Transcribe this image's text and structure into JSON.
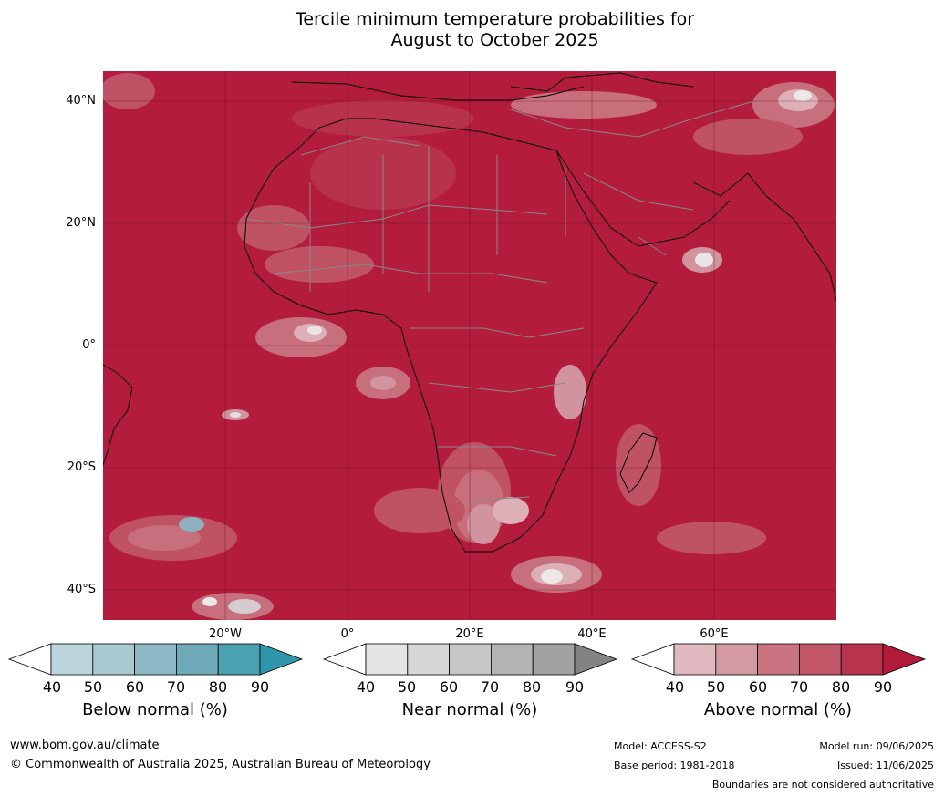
{
  "title": {
    "line1": "Tercile minimum temperature probabilities for",
    "line2": "August to October 2025"
  },
  "map": {
    "region": "Africa",
    "ocean_color": "#b31c3c",
    "lat_labels": [
      "40°N",
      "20°N",
      "0°",
      "20°S",
      "40°S"
    ],
    "lon_labels": [
      "20°W",
      "0°",
      "20°E",
      "40°E",
      "60°E"
    ]
  },
  "colorbars": [
    {
      "name": "below-normal",
      "title": "Below normal (%)",
      "ticks": [
        "40",
        "50",
        "60",
        "70",
        "80",
        "90"
      ],
      "colors": [
        "#ffffff",
        "#bcd5dd",
        "#a9c9d1",
        "#8cb9c5",
        "#6eaab8",
        "#4aa1b2",
        "#2e95ab"
      ]
    },
    {
      "name": "near-normal",
      "title": "Near normal (%)",
      "ticks": [
        "40",
        "50",
        "60",
        "70",
        "80",
        "90"
      ],
      "colors": [
        "#ffffff",
        "#e4e4e4",
        "#d6d6d6",
        "#c6c6c6",
        "#b4b4b4",
        "#a2a2a2",
        "#838383"
      ]
    },
    {
      "name": "above-normal",
      "title": "Above normal (%)",
      "ticks": [
        "40",
        "50",
        "60",
        "70",
        "80",
        "90"
      ],
      "colors": [
        "#ffffff",
        "#e0b8bf",
        "#d39aa3",
        "#c97480",
        "#c05667",
        "#b8344d",
        "#b11b3b"
      ]
    }
  ],
  "footer": {
    "website": "www.bom.gov.au/climate",
    "copyright": "© Commonwealth of Australia 2025, Australian Bureau of Meteorology",
    "model": "Model: ACCESS-S2",
    "base_period": "Base period: 1981-2018",
    "model_run": "Model run: 09/06/2025",
    "issued": "Issued: 11/06/2025",
    "disclaimer": "Boundaries are not considered authoritative"
  }
}
